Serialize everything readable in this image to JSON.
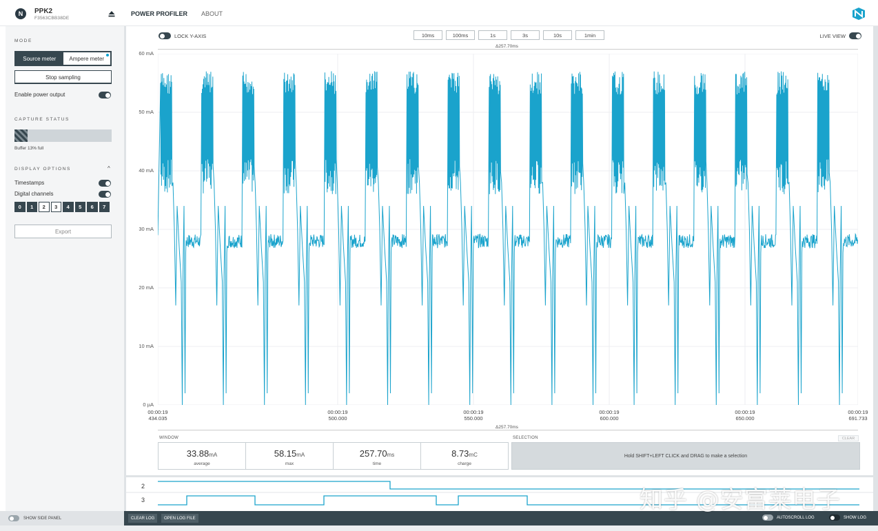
{
  "device": {
    "name": "PPK2",
    "serial": "F3563CBB38DE"
  },
  "nav": {
    "tabs": [
      {
        "label": "POWER PROFILER",
        "active": true
      },
      {
        "label": "ABOUT",
        "active": false
      }
    ]
  },
  "sidebar": {
    "mode_title": "MODE",
    "mode_options": [
      "Source meter",
      "Ampere meter"
    ],
    "mode_selected": "Source meter",
    "stop_sampling": "Stop sampling",
    "enable_power_output": "Enable power output",
    "capture_status_title": "CAPTURE STATUS",
    "buffer_text": "Buffer 13% full",
    "buffer_percent": 13,
    "display_options_title": "DISPLAY OPTIONS",
    "timestamps": "Timestamps",
    "digital_channels": "Digital channels",
    "channels": [
      {
        "label": "0",
        "on": true
      },
      {
        "label": "1",
        "on": true
      },
      {
        "label": "2",
        "on": false
      },
      {
        "label": "3",
        "on": false
      },
      {
        "label": "4",
        "on": true
      },
      {
        "label": "5",
        "on": true
      },
      {
        "label": "6",
        "on": true
      },
      {
        "label": "7",
        "on": true
      }
    ],
    "export": "Export"
  },
  "chart_toolbar": {
    "lock_y_axis": "LOCK Y-AXIS",
    "zoom_buttons": [
      "10ms",
      "100ms",
      "1s",
      "3s",
      "10s",
      "1min"
    ],
    "live_view": "LIVE VIEW",
    "delta_top": "Δ257.70ms",
    "delta_bottom": "Δ257.70ms"
  },
  "chart_data": {
    "type": "line",
    "title": "",
    "ylabel": "Current",
    "xlabel": "Time",
    "y_ticks": [
      "60 mA",
      "50 mA",
      "40 mA",
      "30 mA",
      "20 mA",
      "10 mA",
      "0 µA"
    ],
    "ylim": [
      0,
      60
    ],
    "x_ticks": [
      {
        "time": "00:00:19",
        "ms": "434.035"
      },
      {
        "time": "00:00:19",
        "ms": "500.000"
      },
      {
        "time": "00:00:19",
        "ms": "550.000"
      },
      {
        "time": "00:00:19",
        "ms": "600.000"
      },
      {
        "time": "00:00:19",
        "ms": "650.000"
      },
      {
        "time": "00:00:19",
        "ms": "691.733"
      }
    ],
    "xlim_ms": [
      434.035,
      691.733
    ],
    "grid": true,
    "series": [
      {
        "name": "current",
        "color": "#1aa3cc",
        "baseline_mA": 28,
        "burst_peak_mA": 57,
        "burst_low_mA": 36,
        "dip_min_mA": 0,
        "period_ms": 15.1,
        "burst_count": 17
      }
    ]
  },
  "window_stats": {
    "title": "WINDOW",
    "items": [
      {
        "value": "33.88",
        "unit": "mA",
        "label": "average"
      },
      {
        "value": "58.15",
        "unit": "mA",
        "label": "max"
      },
      {
        "value": "257.70",
        "unit": "ms",
        "label": "time"
      },
      {
        "value": "8.73",
        "unit": "mC",
        "label": "charge"
      }
    ]
  },
  "selection": {
    "title": "SELECTION",
    "clear": "CLEAR",
    "hint": "Hold SHIFT+LEFT CLICK and DRAG to make a selection"
  },
  "digital_channels": {
    "labels": [
      "2",
      "3"
    ]
  },
  "bottom": {
    "show_side_panel": "SHOW SIDE PANEL",
    "clear_log": "CLEAR LOG",
    "open_log_file": "OPEN LOG FILE",
    "autoscroll_log": "AUTOSCROLL LOG",
    "show_log": "SHOW LOG"
  },
  "watermark": "知乎 @安富莱电子",
  "colors": {
    "accent": "#1aa3cc",
    "dark": "#37474f"
  }
}
